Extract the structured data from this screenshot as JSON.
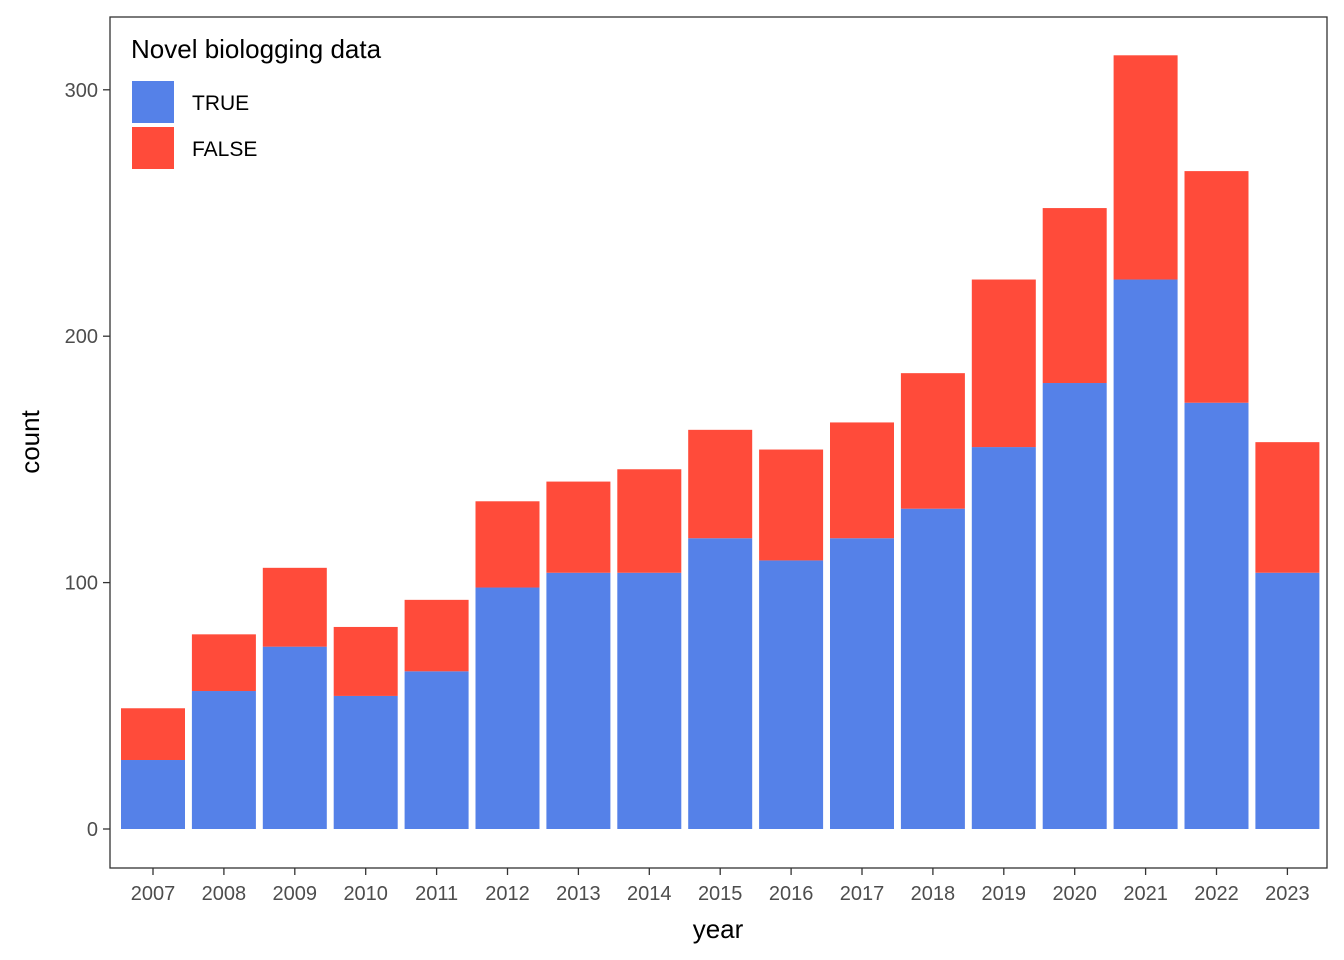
{
  "chart_data": {
    "type": "bar",
    "stacked": true,
    "title": "",
    "xlabel": "year",
    "ylabel": "count",
    "ylim": [
      0,
      320
    ],
    "yticks": [
      0,
      100,
      200,
      300
    ],
    "grid": false,
    "legend": {
      "title": "Novel biologging data",
      "placement": "top-left inside"
    },
    "categories": [
      "2007",
      "2008",
      "2009",
      "2010",
      "2011",
      "2012",
      "2013",
      "2014",
      "2015",
      "2016",
      "2017",
      "2018",
      "2019",
      "2020",
      "2021",
      "2022",
      "2023"
    ],
    "series": [
      {
        "name": "TRUE",
        "color": "#5581E8",
        "values": [
          28,
          56,
          74,
          54,
          64,
          98,
          104,
          104,
          118,
          109,
          118,
          130,
          155,
          181,
          223,
          173,
          104
        ]
      },
      {
        "name": "FALSE",
        "color": "#FF4B3A",
        "values": [
          21,
          23,
          32,
          28,
          29,
          35,
          37,
          42,
          44,
          45,
          47,
          55,
          68,
          71,
          91,
          94,
          53
        ]
      }
    ]
  }
}
